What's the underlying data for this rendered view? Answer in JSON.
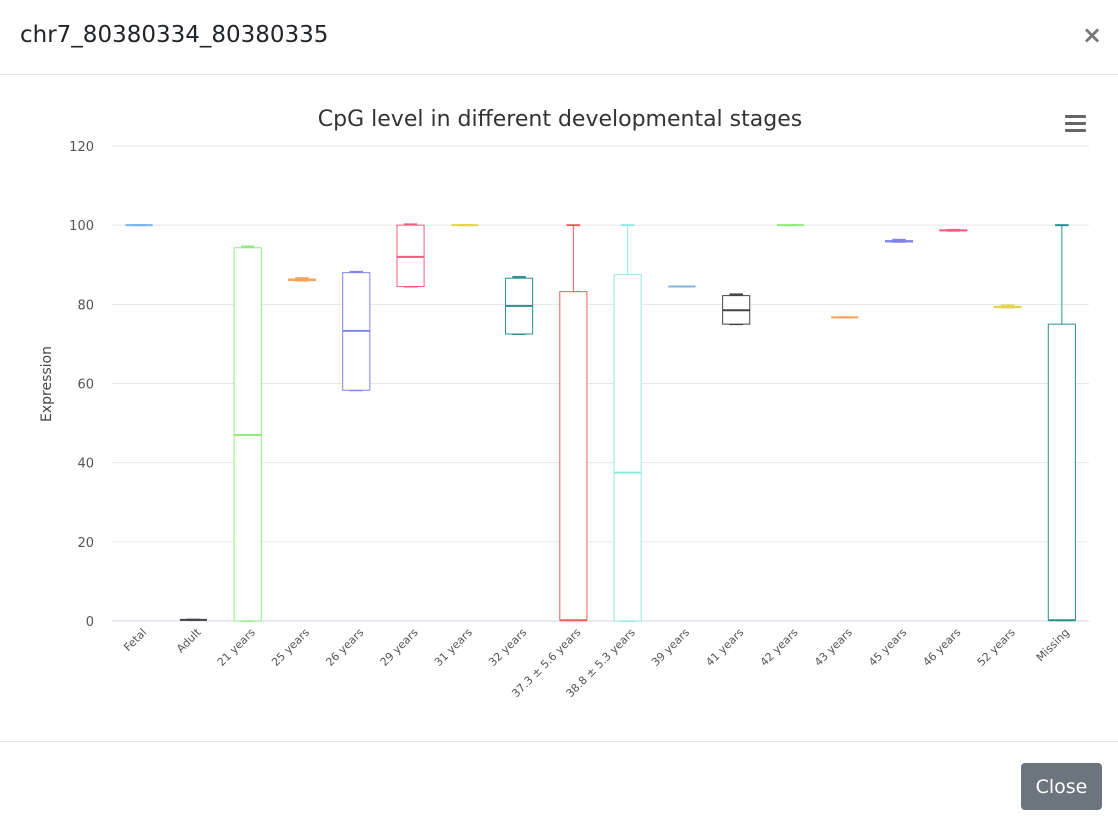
{
  "modal": {
    "title": "chr7_80380334_80380335",
    "close_icon": "×",
    "close_button_label": "Close"
  },
  "chart_data": {
    "type": "boxplot",
    "title": "CpG level in different developmental stages",
    "ylabel": "Expression",
    "xlabel": "",
    "ylim": [
      0,
      120
    ],
    "yticks": [
      0,
      20,
      40,
      60,
      80,
      100,
      120
    ],
    "grid": true,
    "categories": [
      "Fetal",
      "Adult",
      "21 years",
      "25 years",
      "26 years",
      "29 years",
      "31 years",
      "32 years",
      "37.3 ± 5.6 years",
      "38.8 ± 5.3 years",
      "39 years",
      "41 years",
      "42 years",
      "43 years",
      "45 years",
      "46 years",
      "52 years",
      "Missing"
    ],
    "boxes": [
      {
        "low": 100,
        "q1": 100,
        "median": 100,
        "q3": 100,
        "high": 100,
        "color": "#7cb5ec"
      },
      {
        "low": 0.3,
        "q1": 0.3,
        "median": 0.3,
        "q3": 0.3,
        "high": 0.3,
        "color": "#434348"
      },
      {
        "low": 0,
        "q1": 0,
        "median": 47,
        "q3": 94.3,
        "high": 94.6,
        "color": "#90ed7d"
      },
      {
        "low": 86,
        "q1": 86,
        "median": 86.2,
        "q3": 86.4,
        "high": 86.6,
        "color": "#f7a35c"
      },
      {
        "low": 58.3,
        "q1": 58.3,
        "median": 73.3,
        "q3": 88,
        "high": 88.2,
        "color": "#8085e9"
      },
      {
        "low": 84.5,
        "q1": 84.5,
        "median": 92,
        "q3": 100,
        "high": 100.2,
        "color": "#f15c80"
      },
      {
        "low": 100,
        "q1": 100,
        "median": 100,
        "q3": 100,
        "high": 100,
        "color": "#e4d354"
      },
      {
        "low": 72.5,
        "q1": 72.5,
        "median": 79.6,
        "q3": 86.6,
        "high": 86.9,
        "color": "#2b908f"
      },
      {
        "low": 0.2,
        "q1": 0.2,
        "median": 0.2,
        "q3": 83.2,
        "high": 100,
        "color": "#f45b5b"
      },
      {
        "low": 0,
        "q1": 0,
        "median": 37.5,
        "q3": 87.5,
        "high": 100,
        "color": "#91e8e1"
      },
      {
        "low": 84.5,
        "q1": 84.5,
        "median": 84.5,
        "q3": 84.5,
        "high": 84.5,
        "color": "#7cb5ec"
      },
      {
        "low": 75,
        "q1": 75,
        "median": 78.5,
        "q3": 82.2,
        "high": 82.5,
        "color": "#434348"
      },
      {
        "low": 100,
        "q1": 100,
        "median": 100,
        "q3": 100,
        "high": 100,
        "color": "#90ed7d"
      },
      {
        "low": 76.7,
        "q1": 76.7,
        "median": 76.7,
        "q3": 76.7,
        "high": 76.7,
        "color": "#f7a35c"
      },
      {
        "low": 95.8,
        "q1": 95.8,
        "median": 95.9,
        "q3": 96.1,
        "high": 96.3,
        "color": "#8085e9"
      },
      {
        "low": 98.6,
        "q1": 98.6,
        "median": 98.7,
        "q3": 98.8,
        "high": 98.8,
        "color": "#f15c80"
      },
      {
        "low": 79.2,
        "q1": 79.2,
        "median": 79.3,
        "q3": 79.5,
        "high": 79.7,
        "color": "#e4d354"
      },
      {
        "low": 0.2,
        "q1": 0.2,
        "median": 0.2,
        "q3": 75,
        "high": 100,
        "color": "#2b908f"
      }
    ]
  }
}
